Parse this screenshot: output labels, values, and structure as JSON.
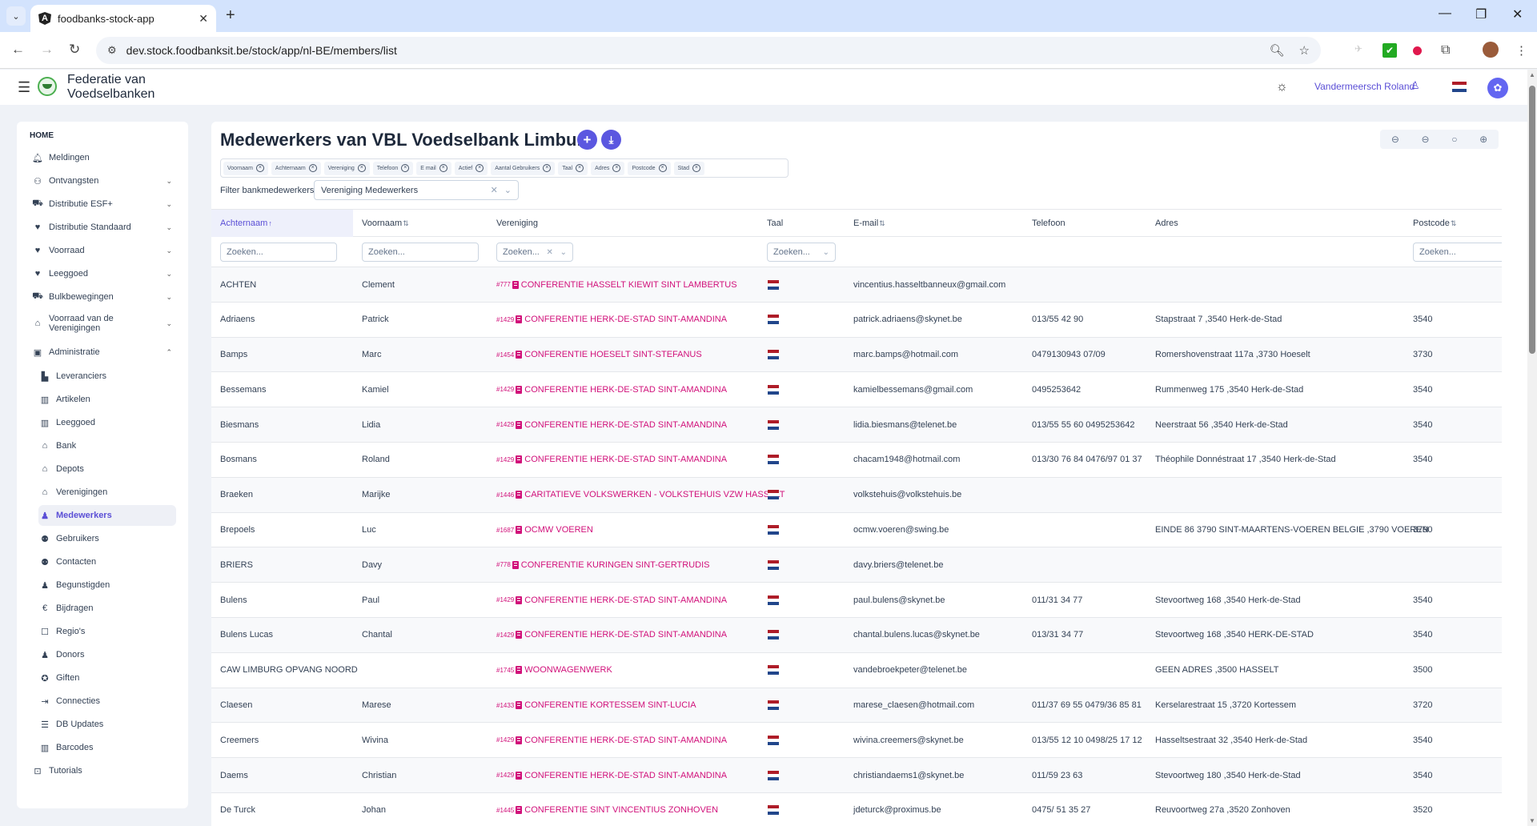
{
  "browser": {
    "tab_title": "foodbanks-stock-app",
    "url": "dev.stock.foodbanksit.be/stock/app/nl-BE/members/list"
  },
  "header": {
    "brand_line1": "Federatie van",
    "brand_line2": "Voedselbanken",
    "user_name": "Vandermeersch Roland"
  },
  "colors": {
    "accent": "#5b57e0",
    "association_link": "#d1107a",
    "flag_red": "#ae1c28",
    "flag_white": "#ffffff",
    "flag_blue": "#21468b"
  },
  "sidebar": {
    "section": "HOME",
    "items": [
      {
        "label": "Meldingen",
        "icon": "bell-icon",
        "expandable": false
      },
      {
        "label": "Ontvangsten",
        "icon": "people-carry-icon",
        "expandable": true
      },
      {
        "label": "Distributie ESF+",
        "icon": "truck-icon",
        "expandable": true
      },
      {
        "label": "Distributie Standaard",
        "icon": "hand-heart-icon",
        "expandable": true
      },
      {
        "label": "Voorraad",
        "icon": "hand-heart-icon",
        "expandable": true
      },
      {
        "label": "Leeggoed",
        "icon": "hand-heart-icon",
        "expandable": true
      },
      {
        "label": "Bulkbewegingen",
        "icon": "truck-icon",
        "expandable": true
      },
      {
        "label": "Voorraad van de Verenigingen",
        "icon": "house-people-icon",
        "expandable": true
      },
      {
        "label": "Administratie",
        "icon": "toolbox-icon",
        "expandable": true,
        "expanded": true
      }
    ],
    "admin_items": [
      {
        "label": "Leveranciers",
        "icon": "industry-icon"
      },
      {
        "label": "Artikelen",
        "icon": "barcode-icon"
      },
      {
        "label": "Leeggoed",
        "icon": "barcode-icon"
      },
      {
        "label": "Bank",
        "icon": "house-people-icon"
      },
      {
        "label": "Depots",
        "icon": "house-people-icon"
      },
      {
        "label": "Verenigingen",
        "icon": "house-people-icon"
      },
      {
        "label": "Medewerkers",
        "icon": "person-icon",
        "active": true
      },
      {
        "label": "Gebruikers",
        "icon": "users-icon"
      },
      {
        "label": "Contacten",
        "icon": "users-icon"
      },
      {
        "label": "Begunstigden",
        "icon": "person-icon"
      },
      {
        "label": "Bijdragen",
        "icon": "euro-icon"
      },
      {
        "label": "Regio's",
        "icon": "square-icon"
      },
      {
        "label": "Donors",
        "icon": "person-icon"
      },
      {
        "label": "Giften",
        "icon": "award-icon"
      },
      {
        "label": "Connecties",
        "icon": "sign-in-icon"
      },
      {
        "label": "DB Updates",
        "icon": "database-icon"
      },
      {
        "label": "Barcodes",
        "icon": "barcode-icon"
      }
    ],
    "tutorials": {
      "label": "Tutorials",
      "icon": "chalkboard-teacher-icon"
    }
  },
  "main": {
    "title": "Medewerkers van VBL Voedselbank Limburg",
    "add_button_label": "+",
    "download_button_label": "⤓",
    "column_chips": [
      "Voornaam",
      "Achternaam",
      "Vereniging",
      "Telefoon",
      "E mail",
      "Actief",
      "Aantal Gebruikers",
      "Taal",
      "Adres",
      "Postcode",
      "Stad"
    ],
    "filter_label": "Filter bankmedewerkers",
    "filter_value": "Vereniging Medewerkers",
    "search_placeholder": "Zoeken...",
    "columns": {
      "lastname": "Achternaam",
      "firstname": "Voornaam",
      "association": "Vereniging",
      "language": "Taal",
      "email": "E-mail",
      "phone": "Telefoon",
      "address": "Adres",
      "postcode": "Postcode"
    },
    "rows": [
      {
        "lastname": "ACHTEN",
        "firstname": "Clement",
        "assoc_id": "#777",
        "assoc": "CONFERENTIE HASSELT KIEWIT SINT LAMBERTUS",
        "email": "vincentius.hasseltbanneux@gmail.com",
        "phone": "",
        "address": "",
        "postcode": ""
      },
      {
        "lastname": "Adriaens",
        "firstname": "Patrick",
        "assoc_id": "#1429",
        "assoc": "CONFERENTIE HERK-DE-STAD SINT-AMANDINA",
        "email": "patrick.adriaens@skynet.be",
        "phone": "013/55 42 90",
        "address": "Stapstraat 7 ,3540 Herk-de-Stad",
        "postcode": "3540"
      },
      {
        "lastname": "Bamps",
        "firstname": "Marc",
        "assoc_id": "#1454",
        "assoc": "CONFERENTIE HOESELT SINT-STEFANUS",
        "email": "marc.bamps@hotmail.com",
        "phone": "0479130943 07/09",
        "address": "Romershovenstraat 117a ,3730 Hoeselt",
        "postcode": "3730"
      },
      {
        "lastname": "Bessemans",
        "firstname": "Kamiel",
        "assoc_id": "#1429",
        "assoc": "CONFERENTIE HERK-DE-STAD SINT-AMANDINA",
        "email": "kamielbessemans@gmail.com",
        "phone": "0495253642",
        "address": "Rummenweg 175 ,3540 Herk-de-Stad",
        "postcode": "3540"
      },
      {
        "lastname": "Biesmans",
        "firstname": "Lidia",
        "assoc_id": "#1429",
        "assoc": "CONFERENTIE HERK-DE-STAD SINT-AMANDINA",
        "email": "lidia.biesmans@telenet.be",
        "phone": "013/55 55 60 0495253642",
        "address": "Neerstraat 56 ,3540 Herk-de-Stad",
        "postcode": "3540"
      },
      {
        "lastname": "Bosmans",
        "firstname": "Roland",
        "assoc_id": "#1429",
        "assoc": "CONFERENTIE HERK-DE-STAD SINT-AMANDINA",
        "email": "chacam1948@hotmail.com",
        "phone": "013/30 76 84 0476/97 01 37",
        "address": "Théophile Donnéstraat 17 ,3540 Herk-de-Stad",
        "postcode": "3540"
      },
      {
        "lastname": "Braeken",
        "firstname": "Marijke",
        "assoc_id": "#1446",
        "assoc": "CARITATIEVE VOLKSWERKEN - VOLKSTEHUIS VZW HASSELT",
        "email": "volkstehuis@volkstehuis.be",
        "phone": "",
        "address": "",
        "postcode": ""
      },
      {
        "lastname": "Brepoels",
        "firstname": "Luc",
        "assoc_id": "#1687",
        "assoc": "OCMW VOEREN",
        "email": "ocmw.voeren@swing.be",
        "phone": "",
        "address": "EINDE 86 3790 SINT-MAARTENS-VOEREN BELGIE ,3790 VOEREN",
        "postcode": "3790"
      },
      {
        "lastname": "BRIERS",
        "firstname": "Davy",
        "assoc_id": "#778",
        "assoc": "CONFERENTIE KURINGEN SINT-GERTRUDIS",
        "email": "davy.briers@telenet.be",
        "phone": "",
        "address": "",
        "postcode": ""
      },
      {
        "lastname": "Bulens",
        "firstname": "Paul",
        "assoc_id": "#1429",
        "assoc": "CONFERENTIE HERK-DE-STAD SINT-AMANDINA",
        "email": "paul.bulens@skynet.be",
        "phone": "011/31 34 77",
        "address": "Stevoortweg 168 ,3540 Herk-de-Stad",
        "postcode": "3540"
      },
      {
        "lastname": "Bulens Lucas",
        "firstname": "Chantal",
        "assoc_id": "#1429",
        "assoc": "CONFERENTIE HERK-DE-STAD SINT-AMANDINA",
        "email": "chantal.bulens.lucas@skynet.be",
        "phone": "013/31 34 77",
        "address": "Stevoortweg 168 ,3540 HERK-DE-STAD",
        "postcode": "3540"
      },
      {
        "lastname": "CAW LIMBURG OPVANG NOORD",
        "firstname": "",
        "assoc_id": "#1745",
        "assoc": "WOONWAGENWERK",
        "email": "vandebroekpeter@telenet.be",
        "phone": "",
        "address": "GEEN ADRES ,3500 HASSELT",
        "postcode": "3500"
      },
      {
        "lastname": "Claesen",
        "firstname": "Marese",
        "assoc_id": "#1433",
        "assoc": "CONFERENTIE KORTESSEM SINT-LUCIA",
        "email": "marese_claesen@hotmail.com",
        "phone": "011/37 69 55 0479/36 85 81",
        "address": "Kerselarestraat 15 ,3720 Kortessem",
        "postcode": "3720"
      },
      {
        "lastname": "Creemers",
        "firstname": "Wivina",
        "assoc_id": "#1429",
        "assoc": "CONFERENTIE HERK-DE-STAD SINT-AMANDINA",
        "email": "wivina.creemers@skynet.be",
        "phone": "013/55 12 10 0498/25 17 12",
        "address": "Hasseltsestraat 32 ,3540 Herk-de-Stad",
        "postcode": "3540"
      },
      {
        "lastname": "Daems",
        "firstname": "Christian",
        "assoc_id": "#1429",
        "assoc": "CONFERENTIE HERK-DE-STAD SINT-AMANDINA",
        "email": "christiandaems1@skynet.be",
        "phone": "011/59 23 63",
        "address": "Stevoortweg 180 ,3540 Herk-de-Stad",
        "postcode": "3540"
      },
      {
        "lastname": "De Turck",
        "firstname": "Johan",
        "assoc_id": "#1445",
        "assoc": "CONFERENTIE SINT VINCENTIUS ZONHOVEN",
        "email": "jdeturck@proximus.be",
        "phone": "0475/ 51 35 27",
        "address": "Reuvoortweg 27a ,3520 Zonhoven",
        "postcode": "3520"
      }
    ]
  }
}
